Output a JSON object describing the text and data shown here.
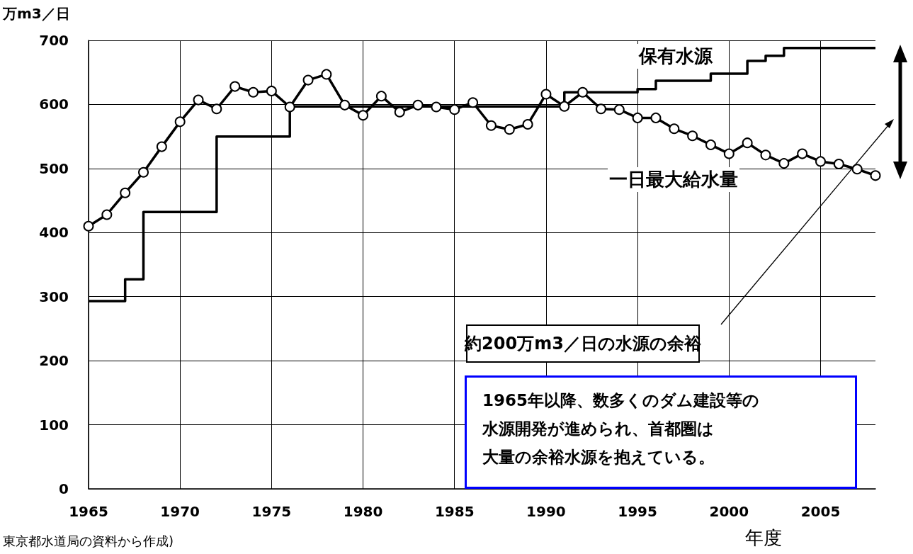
{
  "chart_data": {
    "type": "line",
    "ylabel": "万m3／日",
    "xlabel": "年度",
    "x": [
      1965,
      1966,
      1967,
      1968,
      1969,
      1970,
      1971,
      1972,
      1973,
      1974,
      1975,
      1976,
      1977,
      1978,
      1979,
      1980,
      1981,
      1982,
      1983,
      1984,
      1985,
      1986,
      1987,
      1988,
      1989,
      1990,
      1991,
      1992,
      1993,
      1994,
      1995,
      1996,
      1997,
      1998,
      1999,
      2000,
      2001,
      2002,
      2003,
      2004,
      2005,
      2006,
      2007,
      2008
    ],
    "series": [
      {
        "name": "保有水源",
        "type": "step",
        "color": "#000000",
        "marker": "none",
        "values": [
          293,
          293,
          327,
          432,
          432,
          432,
          432,
          550,
          550,
          550,
          550,
          597,
          597,
          597,
          597,
          597,
          597,
          597,
          597,
          597,
          597,
          597,
          597,
          597,
          597,
          597,
          619,
          619,
          619,
          619,
          624,
          637,
          637,
          637,
          648,
          648,
          668,
          676,
          688,
          688,
          688,
          688,
          688,
          688
        ]
      },
      {
        "name": "一日最大給水量",
        "type": "line",
        "color": "#000000",
        "marker": "circle",
        "values": [
          410,
          428,
          462,
          494,
          534,
          573,
          607,
          593,
          628,
          619,
          621,
          596,
          638,
          647,
          599,
          583,
          613,
          588,
          599,
          596,
          592,
          603,
          567,
          561,
          569,
          616,
          597,
          619,
          593,
          592,
          579,
          579,
          562,
          551,
          537,
          523,
          540,
          521,
          508,
          523,
          511,
          507,
          499,
          489
        ]
      }
    ],
    "xlim": [
      1965,
      2008
    ],
    "xticks": [
      1965,
      1970,
      1975,
      1980,
      1985,
      1990,
      1995,
      2000,
      2005
    ],
    "ylim": [
      0,
      700
    ],
    "yticks": [
      0,
      100,
      200,
      300,
      400,
      500,
      600,
      700
    ],
    "grid": true,
    "annotations": [
      "約200万m3／日の水源の余裕",
      "1965年以降、数多くのダム建設等の",
      "水源開発が進められ、首都圏は",
      "大量の余裕水源を抱えている。",
      "東京都水道局の資料から作成)"
    ]
  }
}
